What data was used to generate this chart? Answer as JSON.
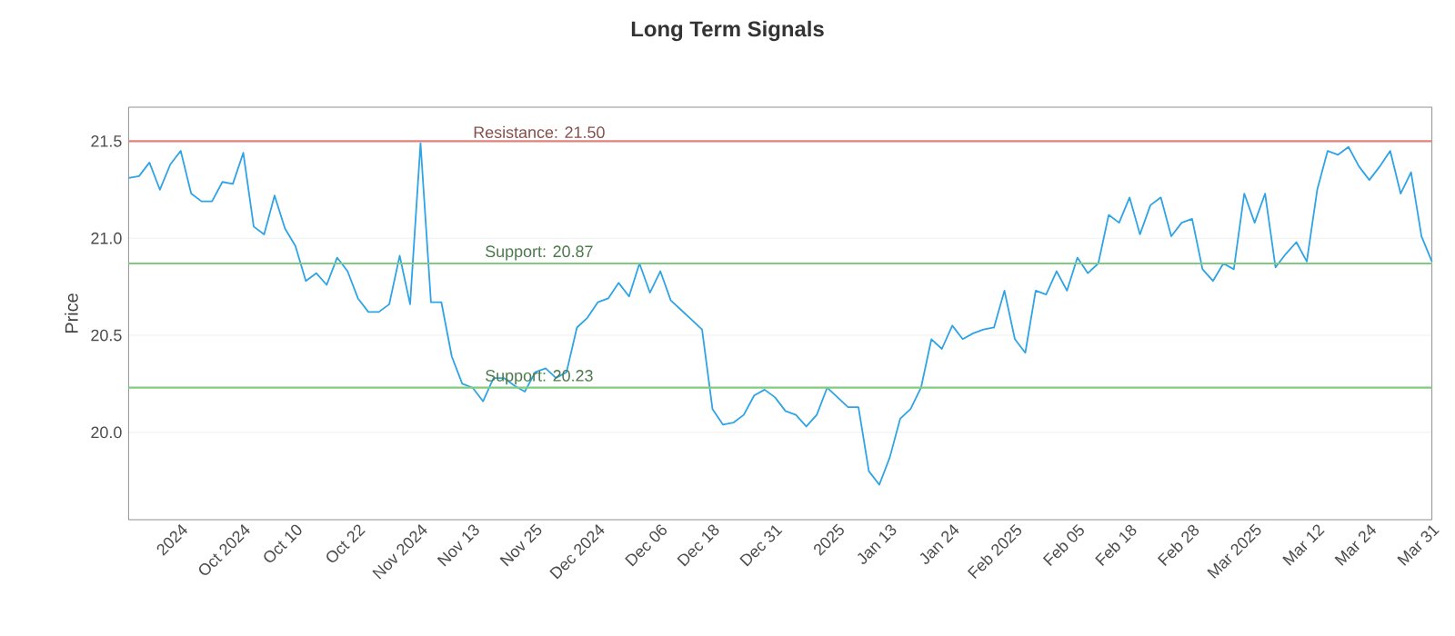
{
  "chart_data": {
    "type": "line",
    "title": "Long Term Signals",
    "ylabel": "Price",
    "categories": [
      null,
      null,
      null,
      null,
      null,
      "2024",
      null,
      null,
      null,
      null,
      null,
      "Oct 2024",
      null,
      null,
      null,
      null,
      "Oct 10",
      null,
      null,
      null,
      null,
      null,
      "Oct 22",
      null,
      null,
      null,
      null,
      null,
      "Nov 2024",
      null,
      null,
      null,
      null,
      "Nov 13",
      null,
      null,
      null,
      null,
      null,
      "Nov 25",
      null,
      null,
      null,
      null,
      null,
      "Dec 2024",
      null,
      null,
      null,
      null,
      null,
      "Dec 06",
      null,
      null,
      null,
      null,
      "Dec 18",
      null,
      null,
      null,
      null,
      null,
      "Dec 31",
      null,
      null,
      null,
      null,
      null,
      "2025",
      null,
      null,
      null,
      null,
      "Jan 13",
      null,
      null,
      null,
      null,
      null,
      "Jan 24",
      null,
      null,
      null,
      null,
      null,
      "Feb 2025",
      null,
      null,
      null,
      null,
      null,
      "Feb 05",
      null,
      null,
      null,
      null,
      "Feb 18",
      null,
      null,
      null,
      null,
      null,
      "Feb 28",
      null,
      null,
      null,
      null,
      null,
      "Mar 2025",
      null,
      null,
      null,
      null,
      null,
      "Mar 12",
      null,
      null,
      null,
      null,
      "Mar 24",
      null,
      null,
      null,
      null,
      null,
      "Mar 31"
    ],
    "values": [
      21.31,
      21.32,
      21.39,
      21.25,
      21.38,
      21.45,
      21.23,
      21.19,
      21.19,
      21.29,
      21.28,
      21.44,
      21.06,
      21.02,
      21.22,
      21.05,
      20.96,
      20.78,
      20.82,
      20.76,
      20.9,
      20.83,
      20.69,
      20.62,
      20.62,
      20.66,
      20.91,
      20.66,
      21.49,
      20.67,
      20.67,
      20.39,
      20.25,
      20.23,
      20.16,
      20.28,
      20.28,
      20.24,
      20.21,
      20.31,
      20.33,
      20.28,
      20.31,
      20.54,
      20.59,
      20.67,
      20.69,
      20.77,
      20.7,
      20.87,
      20.72,
      20.83,
      20.68,
      20.63,
      20.58,
      20.53,
      20.12,
      20.04,
      20.05,
      20.09,
      20.19,
      20.22,
      20.18,
      20.11,
      20.09,
      20.03,
      20.09,
      20.23,
      20.18,
      20.13,
      20.13,
      19.8,
      19.73,
      19.87,
      20.07,
      20.12,
      20.23,
      20.48,
      20.43,
      20.55,
      20.48,
      20.51,
      20.53,
      20.54,
      20.73,
      20.48,
      20.41,
      20.73,
      20.71,
      20.83,
      20.73,
      20.9,
      20.82,
      20.87,
      21.12,
      21.08,
      21.21,
      21.02,
      21.17,
      21.21,
      21.01,
      21.08,
      21.1,
      20.84,
      20.78,
      20.87,
      20.84,
      21.23,
      21.08,
      21.23,
      20.85,
      20.92,
      20.98,
      20.88,
      21.25,
      21.45,
      21.43,
      21.47,
      21.37,
      21.3,
      21.37,
      21.45,
      21.23,
      21.34,
      21.01,
      20.88
    ],
    "color": "#2ea3e6",
    "ylim": [
      19.55,
      21.675
    ],
    "yticks": [
      {
        "value": 20,
        "label": "20.0"
      },
      20.5,
      {
        "value": 21,
        "label": "21.0"
      },
      21.5
    ],
    "grid": "y",
    "ref_lines": [
      {
        "axis": "y",
        "value": 21.5,
        "label": "Resistance: 21.50",
        "color": "#e0827c"
      },
      {
        "axis": "y",
        "value": 20.87,
        "label": "Support: 20.87",
        "color": "#7fcc7f"
      },
      {
        "axis": "y",
        "value": 20.23,
        "label": "Support: 20.23",
        "color": "#7fcc7f"
      }
    ]
  }
}
